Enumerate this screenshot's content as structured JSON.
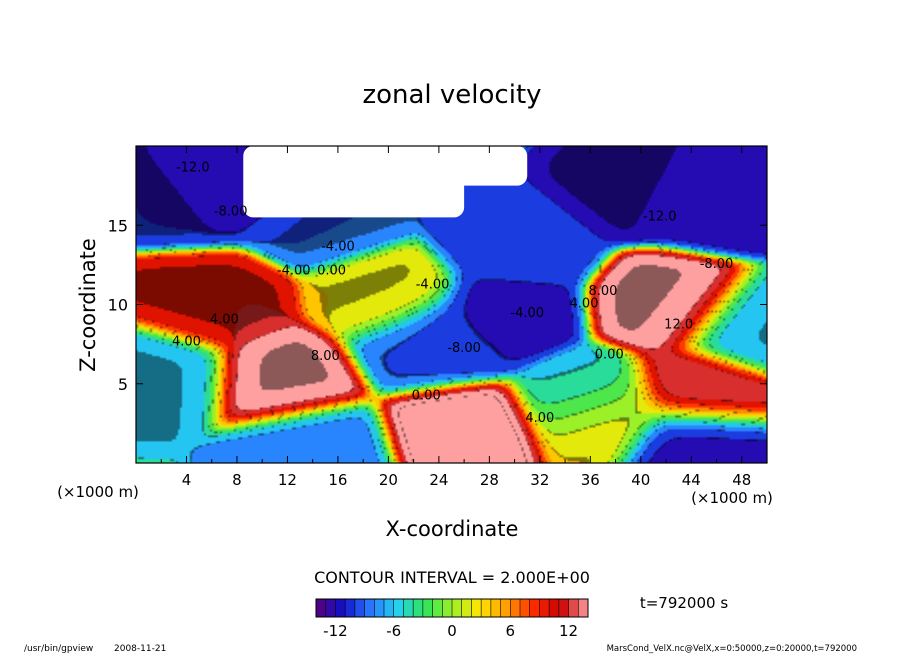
{
  "chart_data": {
    "type": "heatmap",
    "subtype": "filled-contour",
    "title": "zonal velocity",
    "xlabel": "X-coordinate",
    "ylabel": "Z-coordinate",
    "x_unit": "(×1000 m)",
    "y_unit": "(×1000 m)",
    "xlim": [
      0,
      50
    ],
    "ylim": [
      0,
      20
    ],
    "x_ticks": [
      4,
      8,
      12,
      16,
      20,
      24,
      28,
      32,
      36,
      40,
      44,
      48
    ],
    "y_ticks": [
      5,
      10,
      15
    ],
    "contour_interval_text": "CONTOUR INTERVAL = 2.000E+00",
    "time_text": "t=792000 s",
    "colorbar": {
      "min": -14,
      "max": 14,
      "ticks": [
        -12,
        -6,
        0,
        6,
        12
      ],
      "colormap": [
        "#5a007a",
        "#1010c8",
        "#2a78ff",
        "#24d2f0",
        "#2ee45a",
        "#9cf028",
        "#ffe600",
        "#ff9c00",
        "#ff2a00",
        "#c80000",
        "#ffa0a0"
      ]
    },
    "contour_labels": [
      {
        "x": 4.5,
        "z": 18.4,
        "text": "-12.0"
      },
      {
        "x": 7.5,
        "z": 15.6,
        "text": "-8.00"
      },
      {
        "x": 16,
        "z": 13.4,
        "text": "-4.00"
      },
      {
        "x": 12.5,
        "z": 11.9,
        "text": "-4.00"
      },
      {
        "x": 15.5,
        "z": 11.9,
        "text": "0.00"
      },
      {
        "x": 7,
        "z": 8.8,
        "text": "4.00"
      },
      {
        "x": 4,
        "z": 7.4,
        "text": "4.00"
      },
      {
        "x": 15,
        "z": 6.5,
        "text": "8.00"
      },
      {
        "x": 23.5,
        "z": 11,
        "text": "-4.00"
      },
      {
        "x": 26,
        "z": 7,
        "text": "-8.00"
      },
      {
        "x": 31,
        "z": 9.2,
        "text": "-4.00"
      },
      {
        "x": 23,
        "z": 4,
        "text": "0.00"
      },
      {
        "x": 32,
        "z": 2.6,
        "text": "4.00"
      },
      {
        "x": 35.5,
        "z": 9.8,
        "text": "4.00"
      },
      {
        "x": 37,
        "z": 10.6,
        "text": "8.00"
      },
      {
        "x": 37.5,
        "z": 6.6,
        "text": "0.00"
      },
      {
        "x": 41.5,
        "z": 15.3,
        "text": "-12.0"
      },
      {
        "x": 46,
        "z": 12.3,
        "text": "-8.00"
      },
      {
        "x": 43,
        "z": 8.5,
        "text": "12.0"
      }
    ],
    "features": [
      {
        "x": 26,
        "z": 2.2,
        "value": 16
      },
      {
        "x": 42.5,
        "z": 10,
        "value": 15
      },
      {
        "x": 11.5,
        "z": 5.3,
        "value": 15
      },
      {
        "x": 44.5,
        "z": 4.5,
        "value": 13
      },
      {
        "x": 6,
        "z": 10,
        "value": 11
      },
      {
        "x": 30,
        "z": 13.5,
        "value": -10
      },
      {
        "x": 29,
        "z": 9.5,
        "value": -12
      },
      {
        "x": 25,
        "z": 8,
        "value": -11
      },
      {
        "x": 23,
        "z": 7.5,
        "value": -9
      },
      {
        "x": 9,
        "z": 18,
        "value": -13
      },
      {
        "x": 5,
        "z": 17,
        "value": -11
      },
      {
        "x": 40,
        "z": 17.5,
        "value": -13
      },
      {
        "x": 46,
        "z": 16.5,
        "value": -12
      },
      {
        "x": 15,
        "z": 15.5,
        "value": -9
      },
      {
        "x": 2,
        "z": 5.5,
        "value": -7
      },
      {
        "x": 14,
        "z": 1,
        "value": -8
      },
      {
        "x": 36,
        "z": 4,
        "value": -6
      },
      {
        "x": 44,
        "z": 1.5,
        "value": -12
      },
      {
        "x": 48.5,
        "z": 8.5,
        "value": -7
      },
      {
        "x": 20,
        "z": 10.5,
        "value": 3
      },
      {
        "x": 37,
        "z": 3,
        "value": 4
      }
    ],
    "no_data_regions": [
      {
        "x_range": [
          8.5,
          26
        ],
        "z_range": [
          15.5,
          20
        ]
      },
      {
        "x_range": [
          25,
          31
        ],
        "z_range": [
          17.5,
          20
        ]
      }
    ]
  },
  "footer": {
    "program": "/usr/bin/gpview",
    "date": "2008-11-21",
    "source": "MarsCond_VelX.nc@VelX,x=0:50000,z=0:20000,t=792000"
  }
}
